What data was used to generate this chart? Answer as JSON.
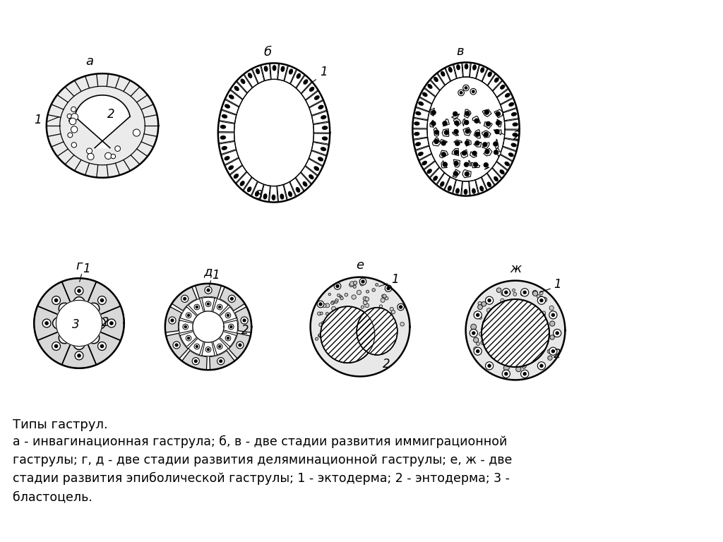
{
  "background_color": "#ffffff",
  "title_text": "Типы гаструл.",
  "caption_lines": [
    "а - инвагинационная гаструла; б, в - две стадии развития иммиграционной",
    "гаструлы; г, д - две стадии развития деляминационной гаструлы; е, ж - две",
    "стадии развития эпиболической гаструлы; 1 - эктодерма; 2 - энтодерма; 3 -",
    "бластоцель."
  ],
  "figure_size": [
    10.24,
    7.68
  ],
  "dpi": 100
}
